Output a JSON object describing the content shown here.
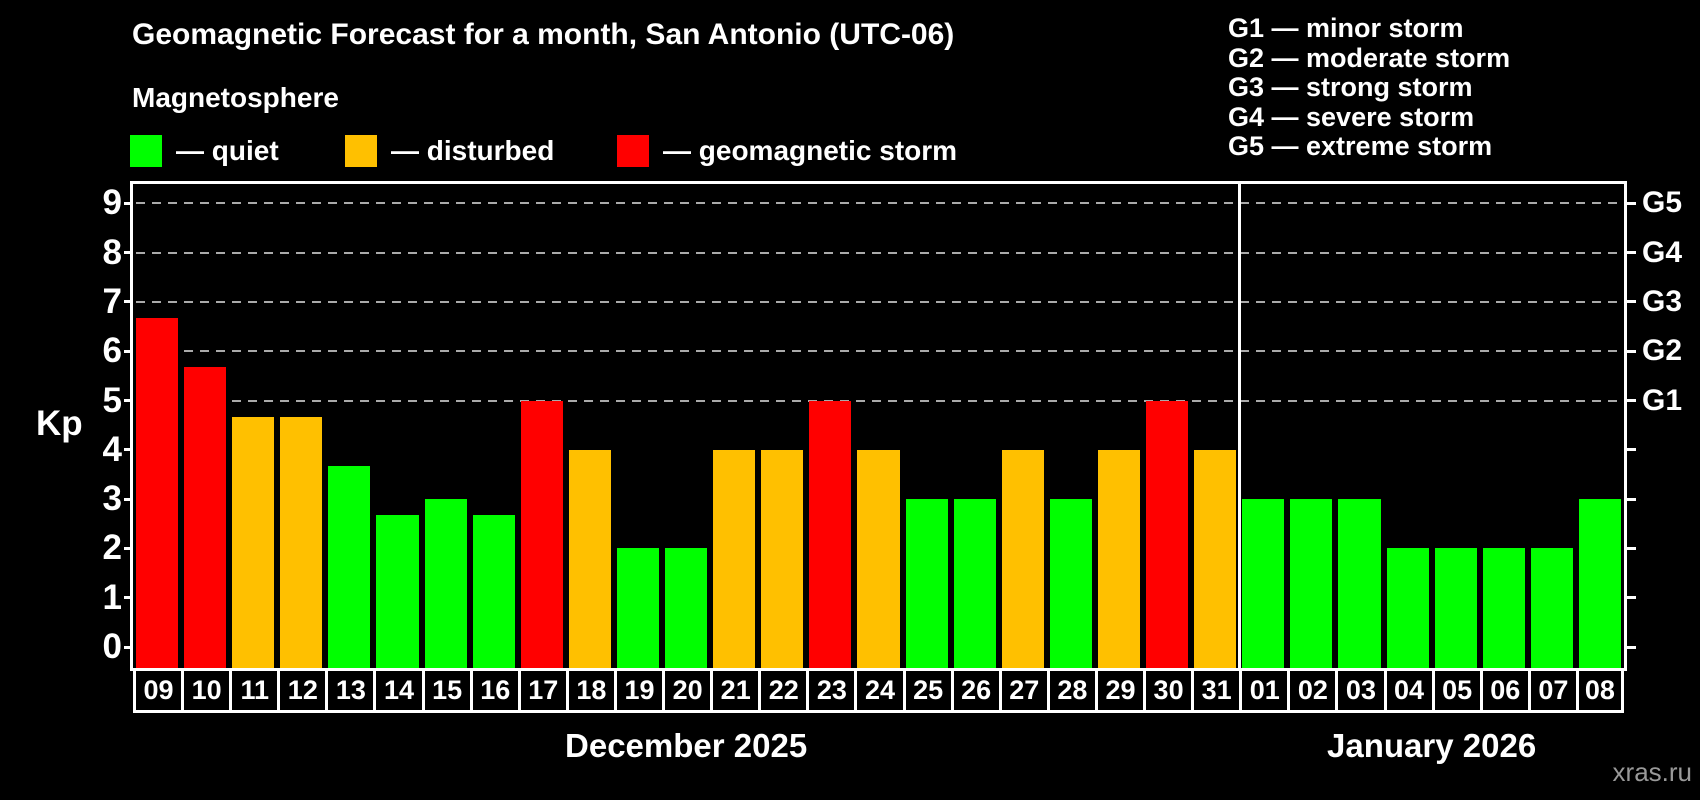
{
  "title": "Geomagnetic Forecast for a month, San Antonio (UTC-06)",
  "subtitle": "Magnetosphere",
  "legend": [
    {
      "key": "quiet",
      "label": "— quiet",
      "color": "#00ff00"
    },
    {
      "key": "disturbed",
      "label": "— disturbed",
      "color": "#ffc000"
    },
    {
      "key": "storm",
      "label": "— geomagnetic storm",
      "color": "#ff0000"
    }
  ],
  "g_scale_legend": [
    "G1 — minor storm",
    "G2 — moderate storm",
    "G3 — strong storm",
    "G4 — severe storm",
    "G5 — extreme storm"
  ],
  "watermark": "xras.ru",
  "chart_data": {
    "type": "bar",
    "title": "Geomagnetic Forecast for a month, San Antonio (UTC-06)",
    "ylabel": "Kp",
    "ylim": [
      0,
      9
    ],
    "y_ticks": [
      0,
      1,
      2,
      3,
      4,
      5,
      6,
      7,
      8,
      9
    ],
    "gridlines_at": [
      5,
      6,
      7,
      8,
      9
    ],
    "grid": "dashed horizontal lines at storm levels G1–G5",
    "right_axis_labels": [
      {
        "kp": 5,
        "label": "G1"
      },
      {
        "kp": 6,
        "label": "G2"
      },
      {
        "kp": 7,
        "label": "G3"
      },
      {
        "kp": 8,
        "label": "G4"
      },
      {
        "kp": 9,
        "label": "G5"
      }
    ],
    "months": [
      {
        "label": "December 2025",
        "key": "dec",
        "days": [
          {
            "day": "09",
            "kp": 6.67,
            "status": "storm"
          },
          {
            "day": "10",
            "kp": 5.67,
            "status": "storm"
          },
          {
            "day": "11",
            "kp": 4.67,
            "status": "disturbed"
          },
          {
            "day": "12",
            "kp": 4.67,
            "status": "disturbed"
          },
          {
            "day": "13",
            "kp": 3.67,
            "status": "quiet"
          },
          {
            "day": "14",
            "kp": 2.67,
            "status": "quiet"
          },
          {
            "day": "15",
            "kp": 3.0,
            "status": "quiet"
          },
          {
            "day": "16",
            "kp": 2.67,
            "status": "quiet"
          },
          {
            "day": "17",
            "kp": 5.0,
            "status": "storm"
          },
          {
            "day": "18",
            "kp": 4.0,
            "status": "disturbed"
          },
          {
            "day": "19",
            "kp": 2.0,
            "status": "quiet"
          },
          {
            "day": "20",
            "kp": 2.0,
            "status": "quiet"
          },
          {
            "day": "21",
            "kp": 4.0,
            "status": "disturbed"
          },
          {
            "day": "22",
            "kp": 4.0,
            "status": "disturbed"
          },
          {
            "day": "23",
            "kp": 5.0,
            "status": "storm"
          },
          {
            "day": "24",
            "kp": 4.0,
            "status": "disturbed"
          },
          {
            "day": "25",
            "kp": 3.0,
            "status": "quiet"
          },
          {
            "day": "26",
            "kp": 3.0,
            "status": "quiet"
          },
          {
            "day": "27",
            "kp": 4.0,
            "status": "disturbed"
          },
          {
            "day": "28",
            "kp": 3.0,
            "status": "quiet"
          },
          {
            "day": "29",
            "kp": 4.0,
            "status": "disturbed"
          },
          {
            "day": "30",
            "kp": 5.0,
            "status": "storm"
          },
          {
            "day": "31",
            "kp": 4.0,
            "status": "disturbed"
          }
        ]
      },
      {
        "label": "January 2026",
        "key": "jan",
        "days": [
          {
            "day": "01",
            "kp": 3.0,
            "status": "quiet"
          },
          {
            "day": "02",
            "kp": 3.0,
            "status": "quiet"
          },
          {
            "day": "03",
            "kp": 3.0,
            "status": "quiet"
          },
          {
            "day": "04",
            "kp": 2.0,
            "status": "quiet"
          },
          {
            "day": "05",
            "kp": 2.0,
            "status": "quiet"
          },
          {
            "day": "06",
            "kp": 2.0,
            "status": "quiet"
          },
          {
            "day": "07",
            "kp": 2.0,
            "status": "quiet"
          },
          {
            "day": "08",
            "kp": 3.0,
            "status": "quiet"
          }
        ]
      }
    ]
  }
}
